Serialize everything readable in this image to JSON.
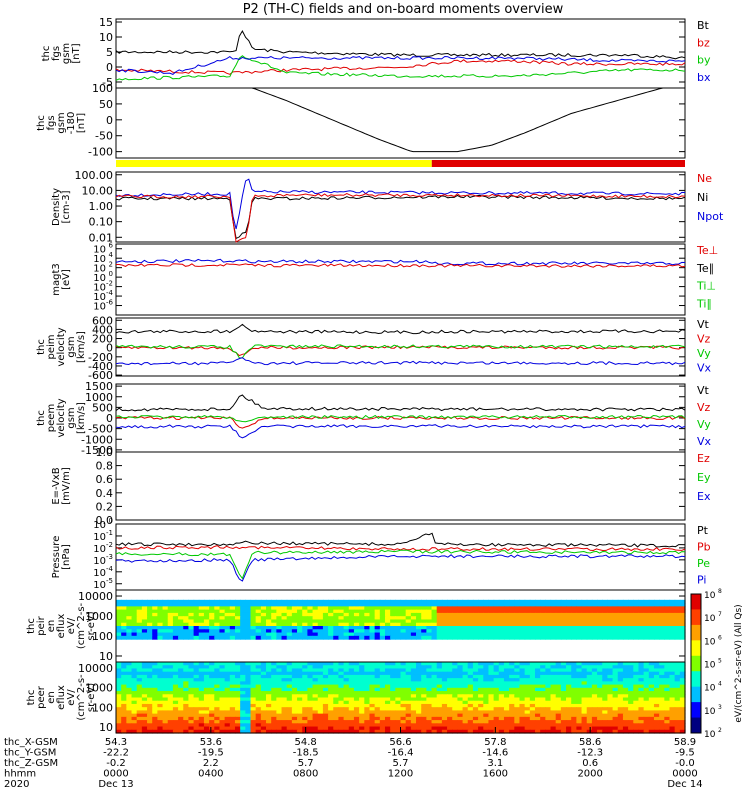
{
  "title": "P2 (TH-C) fields and on-board moments overview",
  "colors": {
    "black": "#000000",
    "red": "#e00000",
    "green": "#00c800",
    "blue": "#0000e0",
    "yellow": "#ffff00",
    "cyan": "#00e8ff",
    "orange": "#ffa500"
  },
  "chart_data": [
    {
      "type": "line",
      "id": "fgs-gsm",
      "ylabel": [
        "thc",
        "fgs",
        "gsm",
        "[nT]"
      ],
      "yticks": [
        "15",
        "10",
        "5",
        "0",
        "-5"
      ],
      "ylim": [
        -7,
        16
      ],
      "legend": [
        {
          "text": "Bt",
          "color": "black"
        },
        {
          "text": "bz",
          "color": "red"
        },
        {
          "text": "by",
          "color": "green"
        },
        {
          "text": "bx",
          "color": "blue"
        }
      ],
      "series": [
        {
          "name": "Bt",
          "color": "black",
          "x": [
            0,
            0.2,
            0.21,
            0.22,
            0.24,
            0.3,
            0.5,
            0.7,
            0.9,
            1
          ],
          "y": [
            5,
            5,
            5,
            13,
            6,
            5,
            4,
            4,
            4,
            3
          ]
        },
        {
          "name": "bz",
          "color": "red",
          "x": [
            0,
            0.2,
            0.3,
            0.5,
            0.55,
            0.6,
            0.7,
            0.8,
            0.9,
            1
          ],
          "y": [
            -1,
            -2,
            -1,
            0,
            1,
            2,
            2,
            1,
            1,
            1
          ]
        },
        {
          "name": "by",
          "color": "green",
          "x": [
            0,
            0.2,
            0.22,
            0.3,
            0.5,
            0.7,
            0.8,
            0.9,
            1
          ],
          "y": [
            -4,
            -3,
            4,
            -2,
            -3,
            -3,
            -2,
            -1,
            -1
          ]
        },
        {
          "name": "bx",
          "color": "blue",
          "x": [
            0,
            0.1,
            0.2,
            0.25,
            0.5,
            0.7,
            0.9,
            1
          ],
          "y": [
            -1,
            -2,
            3,
            3,
            3,
            3,
            2,
            2
          ]
        }
      ]
    },
    {
      "type": "line",
      "id": "fgs-gsm-180",
      "ylabel": [
        "thc",
        "fgs",
        "gsm",
        "-180",
        "[nT]"
      ],
      "yticks": [
        "100",
        "50",
        "0",
        "-50",
        "-100"
      ],
      "ylim": [
        -120,
        100
      ],
      "legend": [],
      "series": [
        {
          "name": "",
          "color": "black",
          "x": [
            0.24,
            0.3,
            0.38,
            0.46,
            0.52,
            0.6,
            0.66,
            0.72,
            0.8,
            0.96
          ],
          "y": [
            100,
            60,
            0,
            -60,
            -100,
            -100,
            -80,
            -40,
            20,
            100
          ]
        }
      ]
    },
    {
      "type": "bar",
      "id": "mode-bar",
      "segments": [
        {
          "from": 0,
          "to": 0.555,
          "color": "yellow"
        },
        {
          "from": 0.555,
          "to": 1,
          "color": "red"
        }
      ]
    },
    {
      "type": "line",
      "id": "density",
      "ylabel": [
        "Density",
        "[cm-3]"
      ],
      "yticks": [
        "100.00",
        "10.00",
        "1.00",
        "0.10",
        "0.01"
      ],
      "ylog": true,
      "ylim": [
        0.005,
        150
      ],
      "legend": [
        {
          "text": "Ne",
          "color": "red"
        },
        {
          "text": "Ni",
          "color": "black"
        },
        {
          "text": "Npot",
          "color": "blue"
        }
      ],
      "series": [
        {
          "name": "Npot",
          "color": "blue",
          "x": [
            0,
            0.2,
            0.21,
            0.23,
            0.24,
            0.3,
            0.6,
            1
          ],
          "y": [
            5,
            6,
            0.02,
            100,
            8,
            8,
            7,
            6
          ]
        },
        {
          "name": "Ni",
          "color": "black",
          "x": [
            0,
            0.2,
            0.21,
            0.23,
            0.24,
            0.3,
            0.6,
            1
          ],
          "y": [
            3,
            3,
            0.01,
            0.02,
            3,
            3,
            4,
            3
          ]
        },
        {
          "name": "Ne",
          "color": "red",
          "x": [
            0,
            0.2,
            0.21,
            0.23,
            0.24,
            0.3,
            0.6,
            1
          ],
          "y": [
            4,
            4,
            0.006,
            0.01,
            4,
            5,
            5,
            4
          ]
        }
      ]
    },
    {
      "type": "line",
      "id": "temperature",
      "ylabel": [
        "magt3",
        "[eV]"
      ],
      "yticks": [
        "10^6",
        "10^4",
        "10^2",
        "10^0",
        "10^-2",
        "10^-4",
        "10^-6"
      ],
      "ylog": true,
      "ylim": [
        1e-08,
        10000000.0
      ],
      "legend": [
        {
          "text": "Te⊥",
          "color": "red"
        },
        {
          "text": "Te∥",
          "color": "black"
        },
        {
          "text": "Ti⊥",
          "color": "green"
        },
        {
          "text": "Ti∥",
          "color": "green"
        }
      ],
      "series": [
        {
          "name": "Ti",
          "color": "blue",
          "x": [
            0,
            0.2,
            0.25,
            0.555,
            0.56,
            1
          ],
          "y": [
            2000,
            3000,
            2000,
            2000,
            800,
            800
          ]
        },
        {
          "name": "Te",
          "color": "red",
          "x": [
            0,
            0.2,
            0.25,
            0.555,
            0.56,
            1
          ],
          "y": [
            300,
            400,
            300,
            300,
            250,
            250
          ]
        }
      ]
    },
    {
      "type": "line",
      "id": "peim-velocity",
      "ylabel": [
        "thc",
        "peim",
        "velocity",
        "gsm",
        "[km/s]"
      ],
      "yticks": [
        "600",
        "400",
        "200",
        "0",
        "-200",
        "-400",
        "-600"
      ],
      "ylim": [
        -620,
        650
      ],
      "legend": [
        {
          "text": "Vt",
          "color": "black"
        },
        {
          "text": "Vz",
          "color": "red"
        },
        {
          "text": "Vy",
          "color": "green"
        },
        {
          "text": "Vx",
          "color": "blue"
        }
      ],
      "series": [
        {
          "name": "Vt",
          "color": "black",
          "x": [
            0,
            0.2,
            0.22,
            0.24,
            0.3,
            0.5,
            0.555,
            0.56,
            1
          ],
          "y": [
            350,
            360,
            500,
            370,
            350,
            340,
            340,
            350,
            360
          ]
        },
        {
          "name": "Vz",
          "color": "red",
          "x": [
            0,
            0.2,
            0.22,
            0.24,
            0.5,
            1
          ],
          "y": [
            0,
            0,
            -200,
            0,
            10,
            0
          ]
        },
        {
          "name": "Vy",
          "color": "green",
          "x": [
            0,
            0.2,
            0.22,
            0.24,
            0.5,
            1
          ],
          "y": [
            20,
            20,
            -250,
            30,
            30,
            20
          ]
        },
        {
          "name": "Vx",
          "color": "blue",
          "x": [
            0,
            0.2,
            0.22,
            0.24,
            0.5,
            1
          ],
          "y": [
            -350,
            -340,
            -200,
            -340,
            -330,
            -340
          ]
        }
      ]
    },
    {
      "type": "line",
      "id": "peem-velocity",
      "ylabel": [
        "thc",
        "peem",
        "velocity",
        "gsm",
        "[km/s]"
      ],
      "yticks": [
        "1500",
        "1000",
        "500",
        "0",
        "-500",
        "-1000",
        "-1500"
      ],
      "ylim": [
        -1600,
        1600
      ],
      "legend": [
        {
          "text": "Vt",
          "color": "black"
        },
        {
          "text": "Vz",
          "color": "red"
        },
        {
          "text": "Vy",
          "color": "green"
        },
        {
          "text": "Vx",
          "color": "blue"
        }
      ],
      "series": [
        {
          "name": "Vt",
          "color": "black",
          "x": [
            0,
            0.2,
            0.22,
            0.26,
            0.5,
            1
          ],
          "y": [
            400,
            420,
            1100,
            450,
            420,
            400
          ]
        },
        {
          "name": "Vz",
          "color": "red",
          "x": [
            0,
            0.2,
            0.22,
            0.26,
            0.5,
            1
          ],
          "y": [
            0,
            0,
            -500,
            0,
            0,
            0
          ]
        },
        {
          "name": "Vy",
          "color": "green",
          "x": [
            0,
            0.2,
            0.22,
            0.26,
            0.5,
            1
          ],
          "y": [
            50,
            50,
            -200,
            50,
            50,
            50
          ]
        },
        {
          "name": "Vx",
          "color": "blue",
          "x": [
            0,
            0.2,
            0.22,
            0.26,
            0.5,
            1
          ],
          "y": [
            -400,
            -400,
            -900,
            -400,
            -380,
            -400
          ]
        }
      ]
    },
    {
      "type": "line",
      "id": "efield",
      "ylabel": [
        "E=-VxB",
        "[mV/m]"
      ],
      "yticks": [
        "1.0",
        "0.8",
        "0.6",
        "0.4",
        "0.2",
        "0.0"
      ],
      "ylim": [
        0,
        1
      ],
      "legend": [
        {
          "text": "Ez",
          "color": "red"
        },
        {
          "text": "Ey",
          "color": "green"
        },
        {
          "text": "Ex",
          "color": "blue"
        }
      ],
      "series": []
    },
    {
      "type": "line",
      "id": "pressure",
      "ylabel": [
        "Pressure",
        "[nPa]"
      ],
      "yticks": [
        "10^0",
        "10^-1",
        "10^-2",
        "10^-3",
        "10^-4",
        "10^-5"
      ],
      "ylog": true,
      "ylim": [
        3e-06,
        1
      ],
      "legend": [
        {
          "text": "Pt",
          "color": "black"
        },
        {
          "text": "Pb",
          "color": "red"
        },
        {
          "text": "Pe",
          "color": "green"
        },
        {
          "text": "Pi",
          "color": "blue"
        }
      ],
      "series": [
        {
          "name": "Pt",
          "color": "black",
          "x": [
            0,
            0.2,
            0.22,
            0.24,
            0.5,
            0.555,
            0.56,
            1
          ],
          "y": [
            0.02,
            0.02,
            0.03,
            0.025,
            0.02,
            0.2,
            0.02,
            0.015
          ]
        },
        {
          "name": "Pb",
          "color": "red",
          "x": [
            0,
            0.2,
            0.3,
            0.5,
            1
          ],
          "y": [
            0.01,
            0.012,
            0.01,
            0.008,
            0.008
          ]
        },
        {
          "name": "Pe",
          "color": "green",
          "x": [
            0,
            0.2,
            0.22,
            0.24,
            0.5,
            1
          ],
          "y": [
            0.003,
            0.003,
            2e-05,
            0.004,
            0.005,
            0.004
          ]
        },
        {
          "name": "Pi",
          "color": "blue",
          "x": [
            0,
            0.2,
            0.22,
            0.24,
            0.5,
            1
          ],
          "y": [
            0.0008,
            0.001,
            1e-05,
            0.001,
            0.002,
            0.002
          ]
        }
      ]
    },
    {
      "type": "heatmap",
      "id": "peir-spectrogram",
      "ylabel": [
        "thc",
        "peir",
        "en",
        "eflux",
        "eV/",
        "(cm^2-s-",
        "sr-eV)"
      ],
      "yticks": [
        "10000",
        "1000",
        "100",
        "10"
      ],
      "ylog": true,
      "ylim": [
        5,
        20000
      ]
    },
    {
      "type": "heatmap",
      "id": "peer-spectrogram",
      "ylabel": [
        "thc",
        "peer",
        "en",
        "eflux",
        "eV/",
        "(cm^2-s-",
        "sr-eV)"
      ],
      "yticks": [
        "10000",
        "1000",
        "100",
        "10"
      ],
      "ylog": true,
      "ylim": [
        5,
        20000
      ]
    }
  ],
  "colorbar": {
    "ticks": [
      "10^8",
      "10^7",
      "10^6",
      "10^5",
      "10^4",
      "10^3",
      "10^2"
    ],
    "label_left": "eV/(cm^2-s-sr-eV)",
    "label_right": "(All Qs)"
  },
  "xaxis": {
    "rows": [
      {
        "label": "thc_X-GSM",
        "values": [
          "54.3",
          "53.6",
          "54.8",
          "56.6",
          "57.8",
          "58.6",
          "58.9"
        ]
      },
      {
        "label": "thc_Y-GSM",
        "values": [
          "-22.2",
          "-19.5",
          "-18.5",
          "-16.4",
          "-14.6",
          "-12.3",
          "-9.5"
        ]
      },
      {
        "label": "thc_Z-GSM",
        "values": [
          "-0.2",
          "2.2",
          "5.7",
          "5.7",
          "3.1",
          "0.6",
          "-0.0"
        ]
      },
      {
        "label": "hhmm",
        "values": [
          "0000",
          "0400",
          "0800",
          "1200",
          "1600",
          "2000",
          "0000"
        ]
      },
      {
        "label": "2020",
        "values": [
          "Dec 13",
          "",
          "",
          "",
          "",
          "",
          "Dec 14"
        ]
      }
    ]
  }
}
